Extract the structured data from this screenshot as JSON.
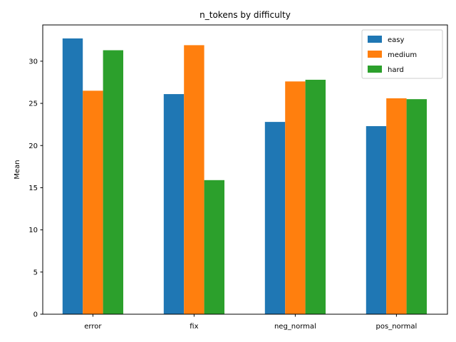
{
  "chart_data": {
    "type": "bar",
    "title": "n_tokens by difficulty",
    "xlabel": "",
    "ylabel": "Mean",
    "categories": [
      "error",
      "fix",
      "neg_normal",
      "pos_normal"
    ],
    "series": [
      {
        "name": "easy",
        "color": "#1f77b4",
        "values": [
          32.7,
          26.1,
          22.8,
          22.3
        ]
      },
      {
        "name": "medium",
        "color": "#ff7f0e",
        "values": [
          26.5,
          31.9,
          27.6,
          25.6
        ]
      },
      {
        "name": "hard",
        "color": "#2ca02c",
        "values": [
          31.3,
          15.9,
          27.8,
          25.5
        ]
      }
    ],
    "ylim": [
      0,
      34.3
    ],
    "yticks": [
      0,
      5,
      10,
      15,
      20,
      25,
      30
    ],
    "grid": false,
    "legend_position": "top-right"
  }
}
